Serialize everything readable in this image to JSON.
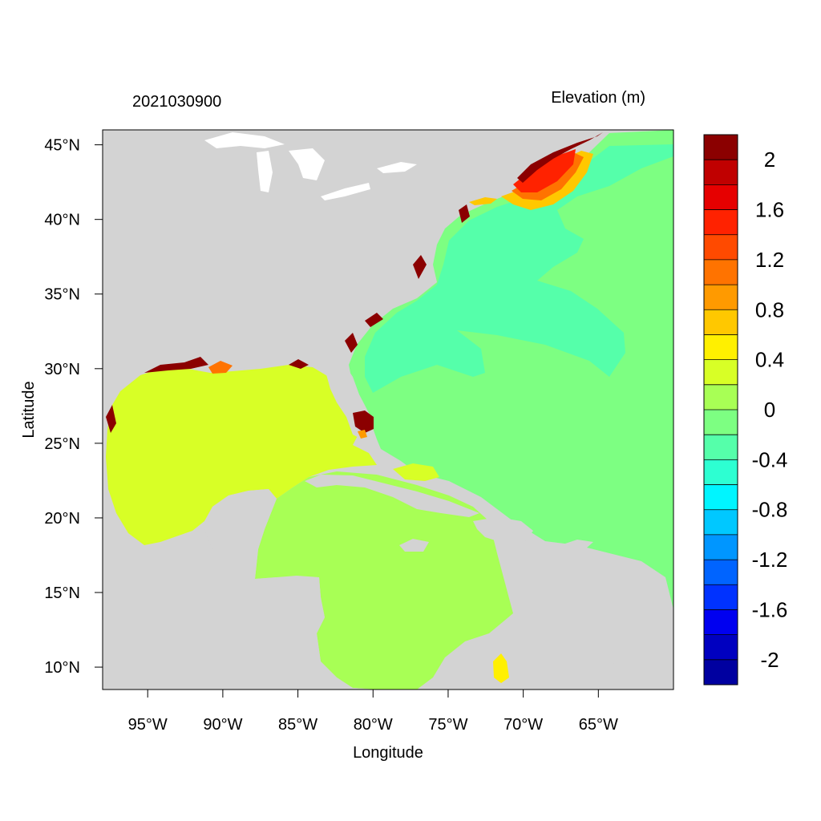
{
  "title_left": "2021030900",
  "title_right": "Elevation (m)",
  "x_axis": {
    "label": "Longitude",
    "ticks": [
      "95°W",
      "90°W",
      "85°W",
      "80°W",
      "75°W",
      "70°W",
      "65°W"
    ]
  },
  "y_axis": {
    "label": "Latitude",
    "ticks": [
      "45°N",
      "40°N",
      "35°N",
      "30°N",
      "25°N",
      "20°N",
      "15°N",
      "10°N"
    ]
  },
  "extent": {
    "lon_min": -98,
    "lon_max": -60,
    "lat_min": 8.5,
    "lat_max": 46
  },
  "colorbar": {
    "labels": [
      "2",
      "1.6",
      "1.2",
      "0.8",
      "0.4",
      "0",
      "-0.4",
      "-0.8",
      "-1.2",
      "-1.6",
      "-2"
    ],
    "colors": [
      "#8b0000",
      "#c00000",
      "#e60000",
      "#ff2200",
      "#ff4a00",
      "#ff7300",
      "#ff9a00",
      "#ffc800",
      "#fff000",
      "#d8ff26",
      "#a8ff55",
      "#7dff82",
      "#55ffaa",
      "#2dffd2",
      "#00f5ff",
      "#00c8ff",
      "#0096ff",
      "#0064ff",
      "#0032ff",
      "#0000f0",
      "#0000c0",
      "#0000a0"
    ]
  },
  "colors": {
    "land": "#d3d3d3",
    "atlantic": "#7dff82",
    "gulf": "#d8ff26",
    "caribbean": "#a8ff55",
    "gyre": "#55ffaa",
    "surge_high": "#8b0000"
  }
}
